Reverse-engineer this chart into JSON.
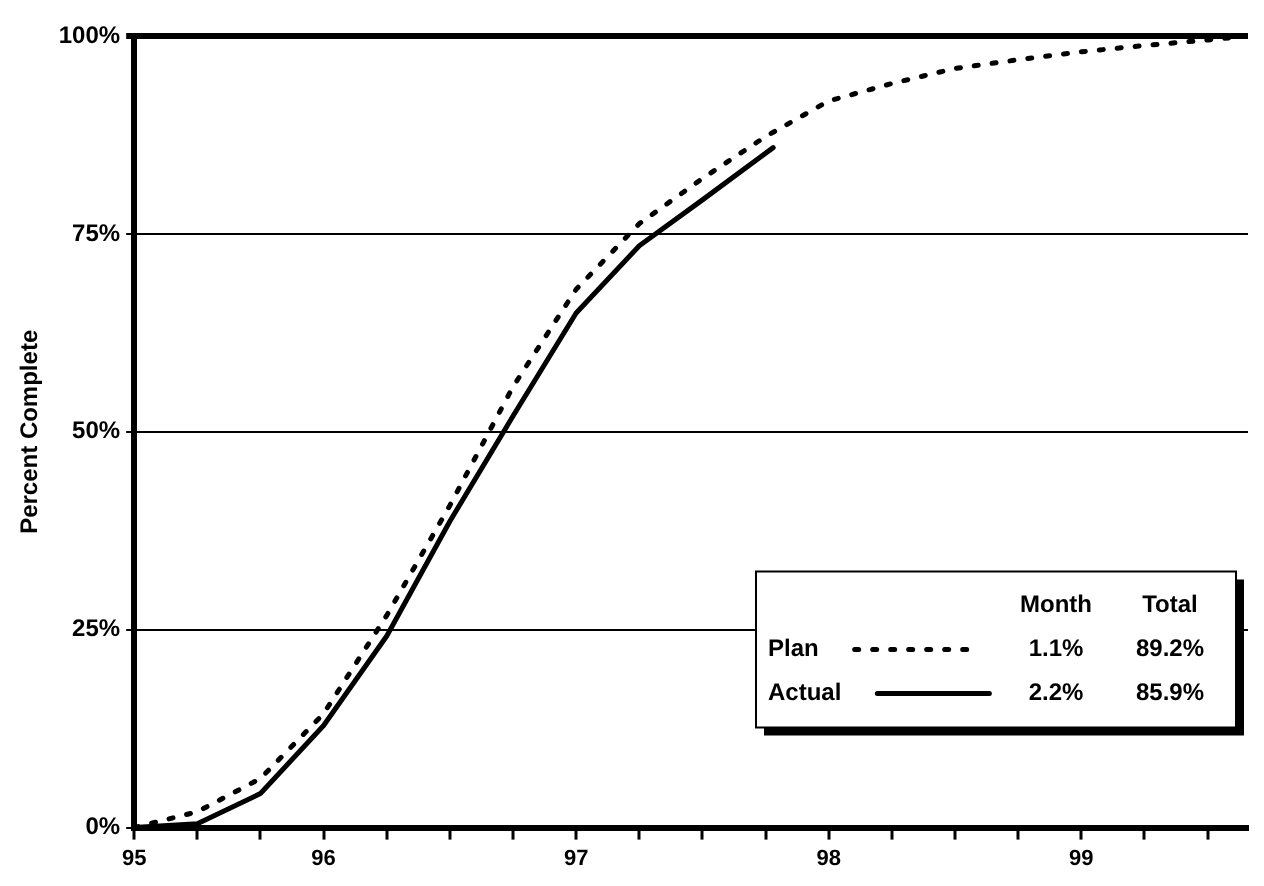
{
  "chart_data": {
    "type": "line",
    "ylabel": "Percent Complete",
    "xlim": [
      95.25,
      99.66
    ],
    "xticks": [
      {
        "value": 95.25,
        "label": "95"
      },
      {
        "value": 95.5,
        "label": null
      },
      {
        "value": 95.75,
        "label": null
      },
      96,
      {
        "value": 96.25,
        "label": null
      },
      {
        "value": 96.5,
        "label": null
      },
      {
        "value": 96.75,
        "label": null
      },
      97,
      {
        "value": 97.25,
        "label": null
      },
      {
        "value": 97.5,
        "label": null
      },
      {
        "value": 97.75,
        "label": null
      },
      98,
      {
        "value": 98.25,
        "label": null
      },
      {
        "value": 98.5,
        "label": null
      },
      {
        "value": 98.75,
        "label": null
      },
      99,
      {
        "value": 99.25,
        "label": null
      },
      {
        "value": 99.5,
        "label": null
      }
    ],
    "ylim": [
      0,
      100
    ],
    "yticks": [
      {
        "value": 0,
        "label": "0%"
      },
      {
        "value": 25,
        "label": "25%"
      },
      {
        "value": 50,
        "label": "50%"
      },
      {
        "value": 75,
        "label": "75%"
      },
      {
        "value": 100,
        "label": "100%"
      }
    ],
    "grid": "y",
    "legend": "bottom right",
    "marker": "none",
    "series": [
      {
        "name": "Plan",
        "color": "#000000",
        "line_style": "dotted",
        "x": [
          95.25,
          95.5,
          95.75,
          96,
          96.25,
          96.5,
          96.75,
          97,
          97.25,
          97.5,
          97.75,
          98,
          98.25,
          98.5,
          98.75,
          99,
          99.25,
          99.5,
          99.66
        ],
        "values": [
          0,
          2,
          6.2,
          14.4,
          26.8,
          40.7,
          55.7,
          68,
          76.3,
          82,
          87.3,
          91.8,
          94,
          95.9,
          97,
          98,
          98.8,
          99.5,
          100
        ]
      },
      {
        "name": "Actual",
        "color": "#000000",
        "line_style": "solid",
        "x": [
          95.25,
          95.5,
          95.75,
          96,
          96.25,
          96.5,
          96.75,
          97,
          97.25,
          97.5,
          97.78
        ],
        "values": [
          0,
          0.5,
          4.3,
          12.9,
          24.2,
          38.7,
          52,
          65,
          73.5,
          79.3,
          85.9
        ]
      }
    ],
    "annotations": [
      "Month",
      "Total",
      "1.1%",
      "89.2%",
      "2.2%",
      "85.9%"
    ]
  }
}
